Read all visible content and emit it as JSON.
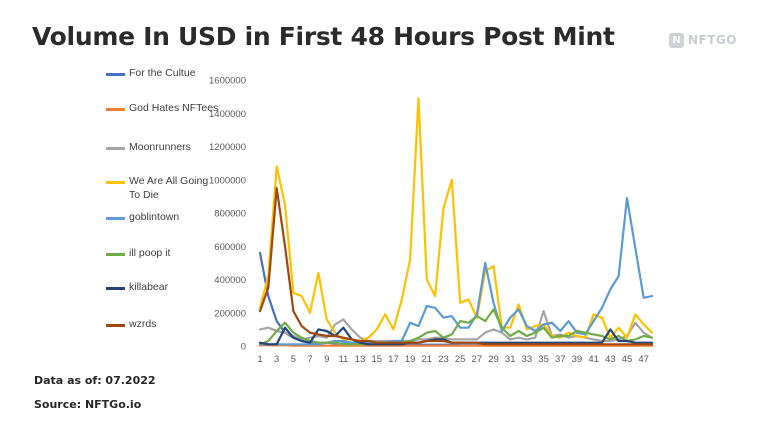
{
  "page": {
    "title": "Volume In USD in First 48 Hours Post Mint",
    "logo_text": "NFTGO",
    "logo_mark": "N",
    "footer_date": "Data as of: 07.2022",
    "footer_source": "Source: NFTGo.io"
  },
  "chart_data": {
    "type": "line",
    "title": "Volume In USD in First 48 Hours Post Mint",
    "xlabel": "",
    "ylabel": "",
    "x": [
      1,
      2,
      3,
      4,
      5,
      6,
      7,
      8,
      9,
      10,
      11,
      12,
      13,
      14,
      15,
      16,
      17,
      18,
      19,
      20,
      21,
      22,
      23,
      24,
      25,
      26,
      27,
      28,
      29,
      30,
      31,
      32,
      33,
      34,
      35,
      36,
      37,
      38,
      39,
      40,
      41,
      42,
      43,
      44,
      45,
      46,
      47,
      48
    ],
    "x_tick_labels": [
      "1",
      "3",
      "5",
      "7",
      "9",
      "11",
      "13",
      "15",
      "17",
      "19",
      "21",
      "23",
      "25",
      "27",
      "29",
      "31",
      "33",
      "35",
      "37",
      "39",
      "41",
      "43",
      "45",
      "47"
    ],
    "ylim": [
      0,
      1600000
    ],
    "y_ticks": [
      0,
      200000,
      400000,
      600000,
      800000,
      1000000,
      1200000,
      1400000,
      1600000
    ],
    "y_tick_labels": [
      "0",
      "200000",
      "400000",
      "600000",
      "800000",
      "1000000",
      "1200000",
      "1400000",
      "1600000"
    ],
    "grid": false,
    "legend_position": "left",
    "series": [
      {
        "name": "For the Cultue",
        "color": "#4472c4",
        "values": [
          560000,
          300000,
          150000,
          80000,
          50000,
          30000,
          20000,
          20000,
          20000,
          15000,
          15000,
          10000,
          10000,
          10000,
          10000,
          10000,
          8000,
          8000,
          8000,
          8000,
          8000,
          8000,
          8000,
          8000,
          5000,
          5000,
          5000,
          5000,
          5000,
          5000,
          5000,
          5000,
          5000,
          5000,
          5000,
          5000,
          5000,
          5000,
          5000,
          5000,
          5000,
          5000,
          5000,
          5000,
          5000,
          5000,
          5000,
          5000
        ]
      },
      {
        "name": "God Hates NFTees",
        "color": "#ed7d31",
        "values": [
          5000,
          5000,
          5000,
          5000,
          2000,
          2000,
          2000,
          2000,
          2000,
          2000,
          2000,
          2000,
          2000,
          2000,
          2000,
          2000,
          2000,
          2000,
          2000,
          2000,
          2000,
          2000,
          2000,
          2000,
          2000,
          2000,
          2000,
          2000,
          2000,
          2000,
          2000,
          2000,
          2000,
          2000,
          2000,
          2000,
          2000,
          2000,
          2000,
          2000,
          2000,
          2000,
          2000,
          2000,
          2000,
          2000,
          2000,
          2000
        ]
      },
      {
        "name": "Moonrunners",
        "color": "#a5a5a5",
        "values": [
          100000,
          110000,
          90000,
          80000,
          60000,
          40000,
          50000,
          60000,
          50000,
          130000,
          160000,
          100000,
          50000,
          30000,
          30000,
          30000,
          30000,
          30000,
          30000,
          40000,
          40000,
          50000,
          50000,
          40000,
          40000,
          40000,
          40000,
          80000,
          100000,
          80000,
          40000,
          50000,
          40000,
          50000,
          210000,
          60000,
          70000,
          50000,
          60000,
          50000,
          40000,
          30000,
          30000,
          40000,
          60000,
          140000,
          80000,
          50000
        ]
      },
      {
        "name": "We Are All Going To Die",
        "color": "#ffc000",
        "values": [
          230000,
          420000,
          1080000,
          850000,
          320000,
          300000,
          200000,
          440000,
          160000,
          80000,
          40000,
          40000,
          30000,
          50000,
          100000,
          190000,
          100000,
          280000,
          520000,
          1490000,
          400000,
          300000,
          830000,
          1000000,
          260000,
          280000,
          170000,
          450000,
          480000,
          110000,
          110000,
          250000,
          100000,
          120000,
          130000,
          60000,
          50000,
          80000,
          60000,
          50000,
          190000,
          170000,
          50000,
          110000,
          50000,
          190000,
          130000,
          80000
        ]
      },
      {
        "name": "goblintown",
        "color": "#5b9bd5",
        "values": [
          10000,
          10000,
          10000,
          10000,
          10000,
          10000,
          10000,
          10000,
          20000,
          30000,
          30000,
          20000,
          20000,
          20000,
          20000,
          20000,
          30000,
          30000,
          140000,
          120000,
          240000,
          230000,
          170000,
          180000,
          110000,
          110000,
          190000,
          500000,
          260000,
          90000,
          170000,
          220000,
          120000,
          90000,
          130000,
          140000,
          90000,
          150000,
          80000,
          70000,
          150000,
          230000,
          340000,
          420000,
          890000,
          590000,
          290000,
          300000
        ]
      },
      {
        "name": "ill poop it",
        "color": "#70ad47",
        "values": [
          10000,
          30000,
          90000,
          140000,
          80000,
          50000,
          30000,
          20000,
          20000,
          20000,
          10000,
          10000,
          10000,
          10000,
          10000,
          20000,
          20000,
          20000,
          30000,
          50000,
          80000,
          90000,
          50000,
          70000,
          150000,
          140000,
          180000,
          150000,
          220000,
          110000,
          60000,
          90000,
          60000,
          80000,
          110000,
          50000,
          60000,
          60000,
          90000,
          80000,
          70000,
          60000,
          40000,
          60000,
          30000,
          40000,
          60000,
          50000
        ]
      },
      {
        "name": "killabear",
        "color": "#264478",
        "values": [
          20000,
          10000,
          10000,
          110000,
          50000,
          30000,
          20000,
          100000,
          90000,
          60000,
          110000,
          40000,
          20000,
          10000,
          10000,
          10000,
          10000,
          10000,
          20000,
          20000,
          30000,
          40000,
          40000,
          20000,
          20000,
          20000,
          20000,
          20000,
          20000,
          20000,
          20000,
          20000,
          20000,
          20000,
          20000,
          20000,
          20000,
          20000,
          20000,
          20000,
          20000,
          20000,
          100000,
          30000,
          30000,
          20000,
          20000,
          20000
        ]
      },
      {
        "name": "wzrds",
        "color": "#9e480e",
        "values": [
          210000,
          350000,
          950000,
          600000,
          210000,
          120000,
          80000,
          70000,
          60000,
          60000,
          50000,
          40000,
          30000,
          30000,
          20000,
          20000,
          20000,
          20000,
          20000,
          20000,
          30000,
          30000,
          30000,
          20000,
          20000,
          20000,
          20000,
          10000,
          10000,
          10000,
          10000,
          10000,
          10000,
          10000,
          10000,
          10000,
          10000,
          10000,
          10000,
          10000,
          10000,
          10000,
          10000,
          10000,
          10000,
          10000,
          10000,
          10000
        ]
      }
    ]
  }
}
